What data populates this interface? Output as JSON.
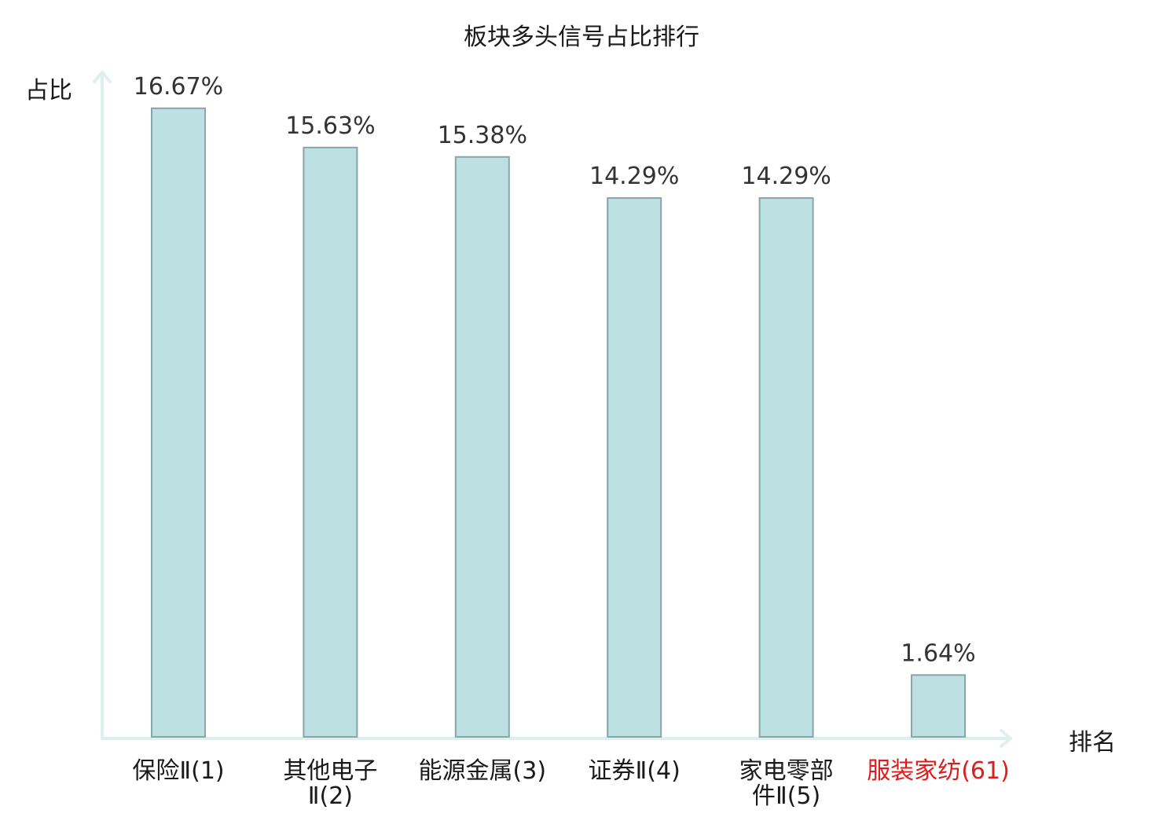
{
  "title": "板块多头信号占比排行",
  "axis": {
    "y_label": "占比",
    "x_label": "排名"
  },
  "colors": {
    "bar_fill": "#bde0e2",
    "bar_stroke": "#8aa5a7",
    "axis": "#dcf0ee",
    "value_label": "#333333",
    "highlight": "#e01b1b"
  },
  "chart_data": {
    "type": "bar",
    "title": "板块多头信号占比排行",
    "xlabel": "排名",
    "ylabel": "占比",
    "ylim": [
      0,
      18
    ],
    "grid": false,
    "categories": [
      {
        "lines": [
          "保险Ⅱ(1)"
        ],
        "highlight": false
      },
      {
        "lines": [
          "其他电子",
          "Ⅱ(2)"
        ],
        "highlight": false
      },
      {
        "lines": [
          "能源金属(3)"
        ],
        "highlight": false
      },
      {
        "lines": [
          "证券Ⅱ(4)"
        ],
        "highlight": false
      },
      {
        "lines": [
          "家电零部",
          "件Ⅱ(5)"
        ],
        "highlight": false
      },
      {
        "lines": [
          "服装家纺(61)"
        ],
        "highlight": true
      }
    ],
    "values": [
      16.67,
      15.63,
      15.38,
      14.29,
      14.29,
      1.64
    ],
    "value_labels": [
      "16.67%",
      "15.63%",
      "15.38%",
      "14.29%",
      "14.29%",
      "1.64%"
    ]
  }
}
